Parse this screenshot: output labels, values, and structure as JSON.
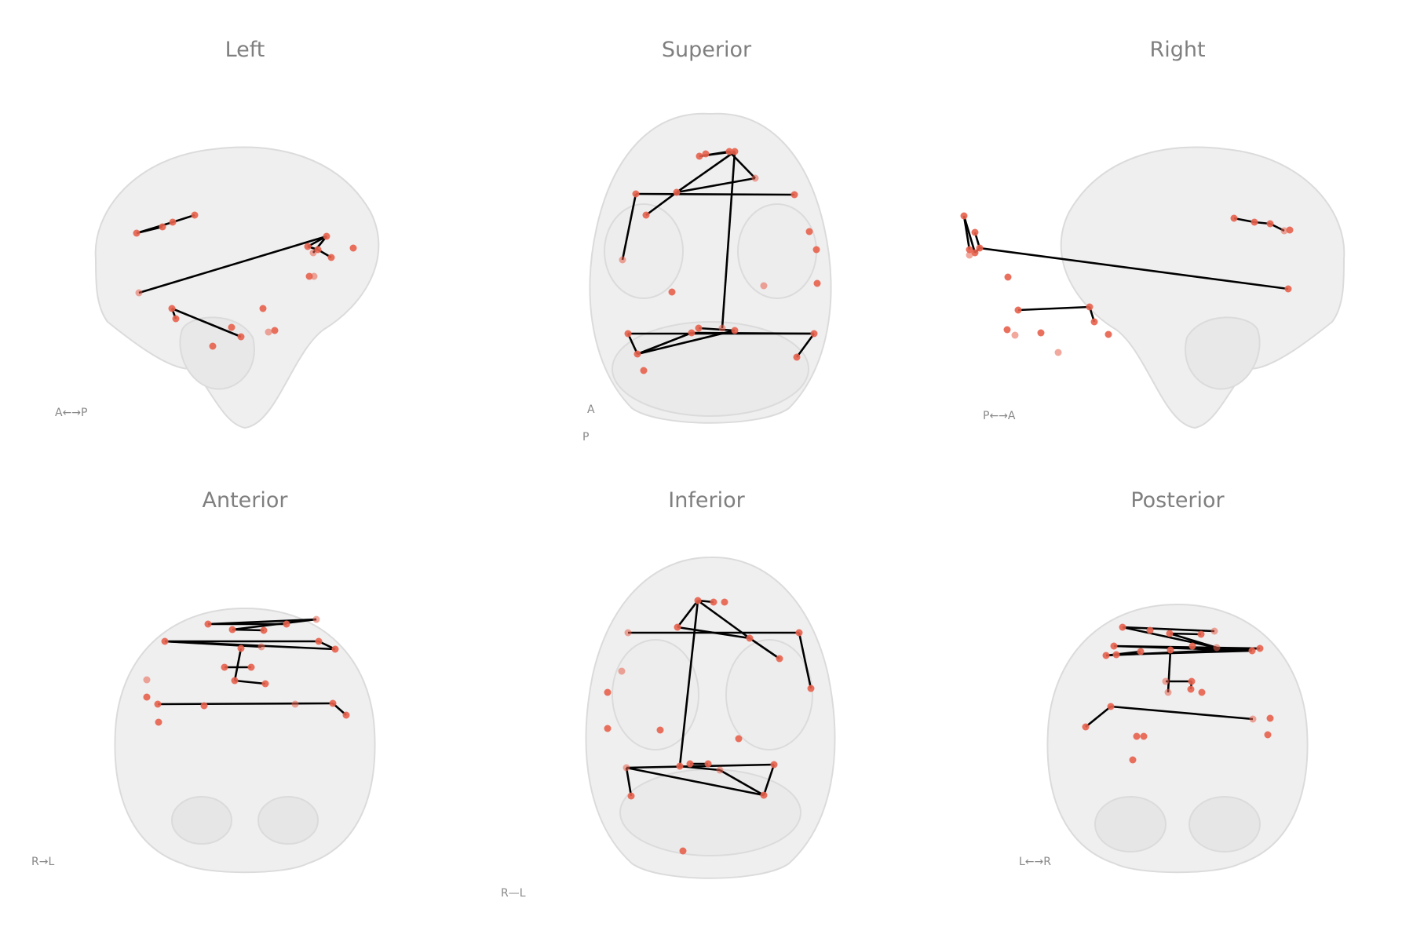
{
  "colors": {
    "brain": "#d0d0d0",
    "node": "#e8604c",
    "edge": "#000000",
    "title": "#7f7f7f",
    "orient": "#888888"
  },
  "views": [
    {
      "id": "left",
      "title": "Left",
      "orientation": "A←→P"
    },
    {
      "id": "superior",
      "title": "Superior",
      "orientation": "A↕P",
      "orientation_top": "A",
      "orientation_bottom": "P"
    },
    {
      "id": "right",
      "title": "Right",
      "orientation": "P←→A"
    },
    {
      "id": "anterior",
      "title": "Anterior",
      "orientation": "R→L"
    },
    {
      "id": "inferior",
      "title": "Inferior",
      "orientation": "R—L"
    },
    {
      "id": "posterior",
      "title": "Posterior",
      "orientation": "L←→R"
    }
  ]
}
